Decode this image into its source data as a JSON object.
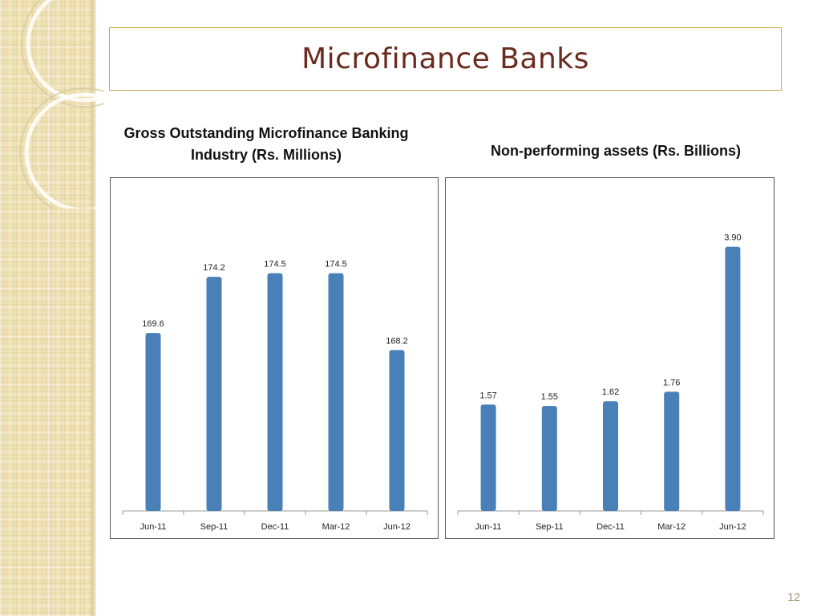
{
  "slide": {
    "title": "Microfinance Banks",
    "page_number": "12"
  },
  "colors": {
    "bar": "#4a80b8",
    "title": "#6b2a1e",
    "title_border": "#c9a73e"
  },
  "chart_data": [
    {
      "type": "bar",
      "title_line1": "Gross Outstanding Microfinance Banking",
      "title_line2": "Industry  (Rs. Millions)",
      "categories": [
        "Jun-11",
        "Sep-11",
        "Dec-11",
        "Mar-12",
        "Jun-12"
      ],
      "values": [
        169.6,
        174.2,
        174.5,
        174.5,
        168.2
      ],
      "data_labels": [
        "169.6",
        "174.2",
        "174.5",
        "174.5",
        "168.2"
      ],
      "ylim": [
        155,
        180
      ]
    },
    {
      "type": "bar",
      "title": "Non-performing assets (Rs. Billions)",
      "categories": [
        "Jun-11",
        "Sep-11",
        "Dec-11",
        "Mar-12",
        "Jun-12"
      ],
      "values": [
        1.57,
        1.55,
        1.62,
        1.76,
        3.9
      ],
      "data_labels": [
        "1.57",
        "1.55",
        "1.62",
        "1.76",
        "3.90"
      ],
      "ylim": [
        0,
        4.5
      ]
    }
  ]
}
